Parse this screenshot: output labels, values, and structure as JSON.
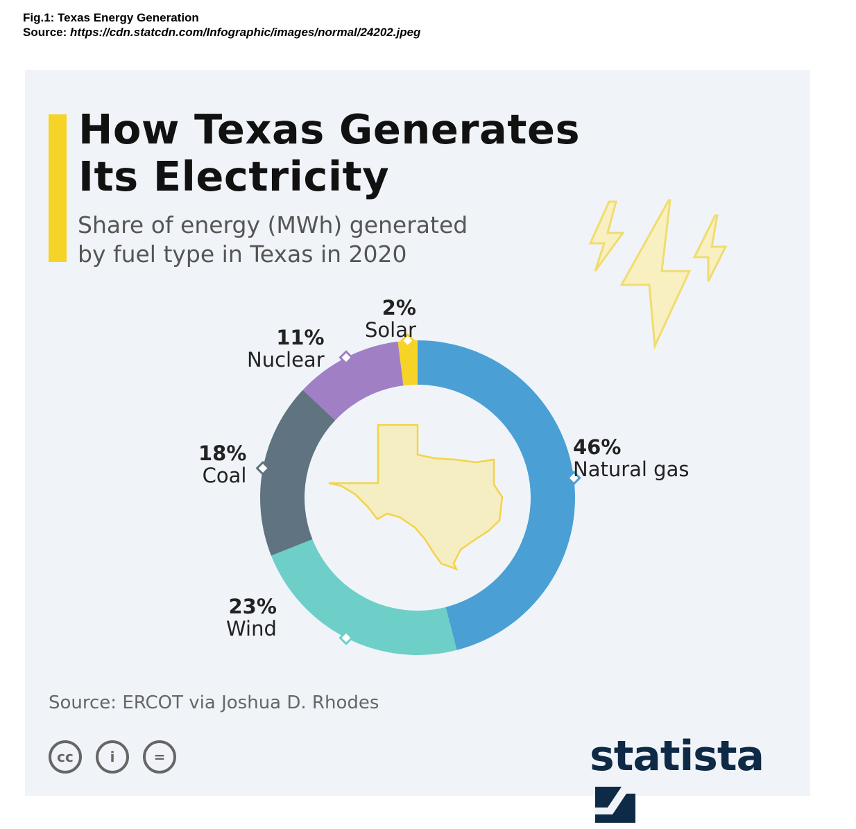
{
  "caption": {
    "title": "Fig.1: Texas Energy Generation",
    "source_label": "Source:",
    "source_url": "https://cdn.statcdn.com/Infographic/images/normal/24202.jpeg"
  },
  "chart_data": {
    "type": "pie",
    "style": "donut",
    "title": "How Texas Generates Its Electricity",
    "title_lines": [
      "How Texas Generates",
      "Its Electricity"
    ],
    "subtitle_lines": [
      "Share of energy (MWh) generated",
      "by fuel type in Texas in 2020"
    ],
    "unit": "%",
    "slices": [
      {
        "name": "Natural gas",
        "value": 46,
        "label": "46%",
        "color": "#4a9fd5"
      },
      {
        "name": "Wind",
        "value": 23,
        "label": "23%",
        "color": "#6dcfc8"
      },
      {
        "name": "Coal",
        "value": 18,
        "label": "18%",
        "color": "#5f7380"
      },
      {
        "name": "Nuclear",
        "value": 11,
        "label": "11%",
        "color": "#a07fc4"
      },
      {
        "name": "Solar",
        "value": 2,
        "label": "2%",
        "color": "#f5d327"
      }
    ],
    "source": "Source: ERCOT via Joshua D. Rhodes"
  },
  "footer": {
    "license_icons": [
      "cc",
      "by",
      "nd"
    ],
    "license_text": [
      "cc",
      "i",
      "="
    ],
    "brand": "statista"
  },
  "colors": {
    "accent": "#f5d327",
    "background": "#f0f4f8",
    "brand": "#0e2a47"
  }
}
